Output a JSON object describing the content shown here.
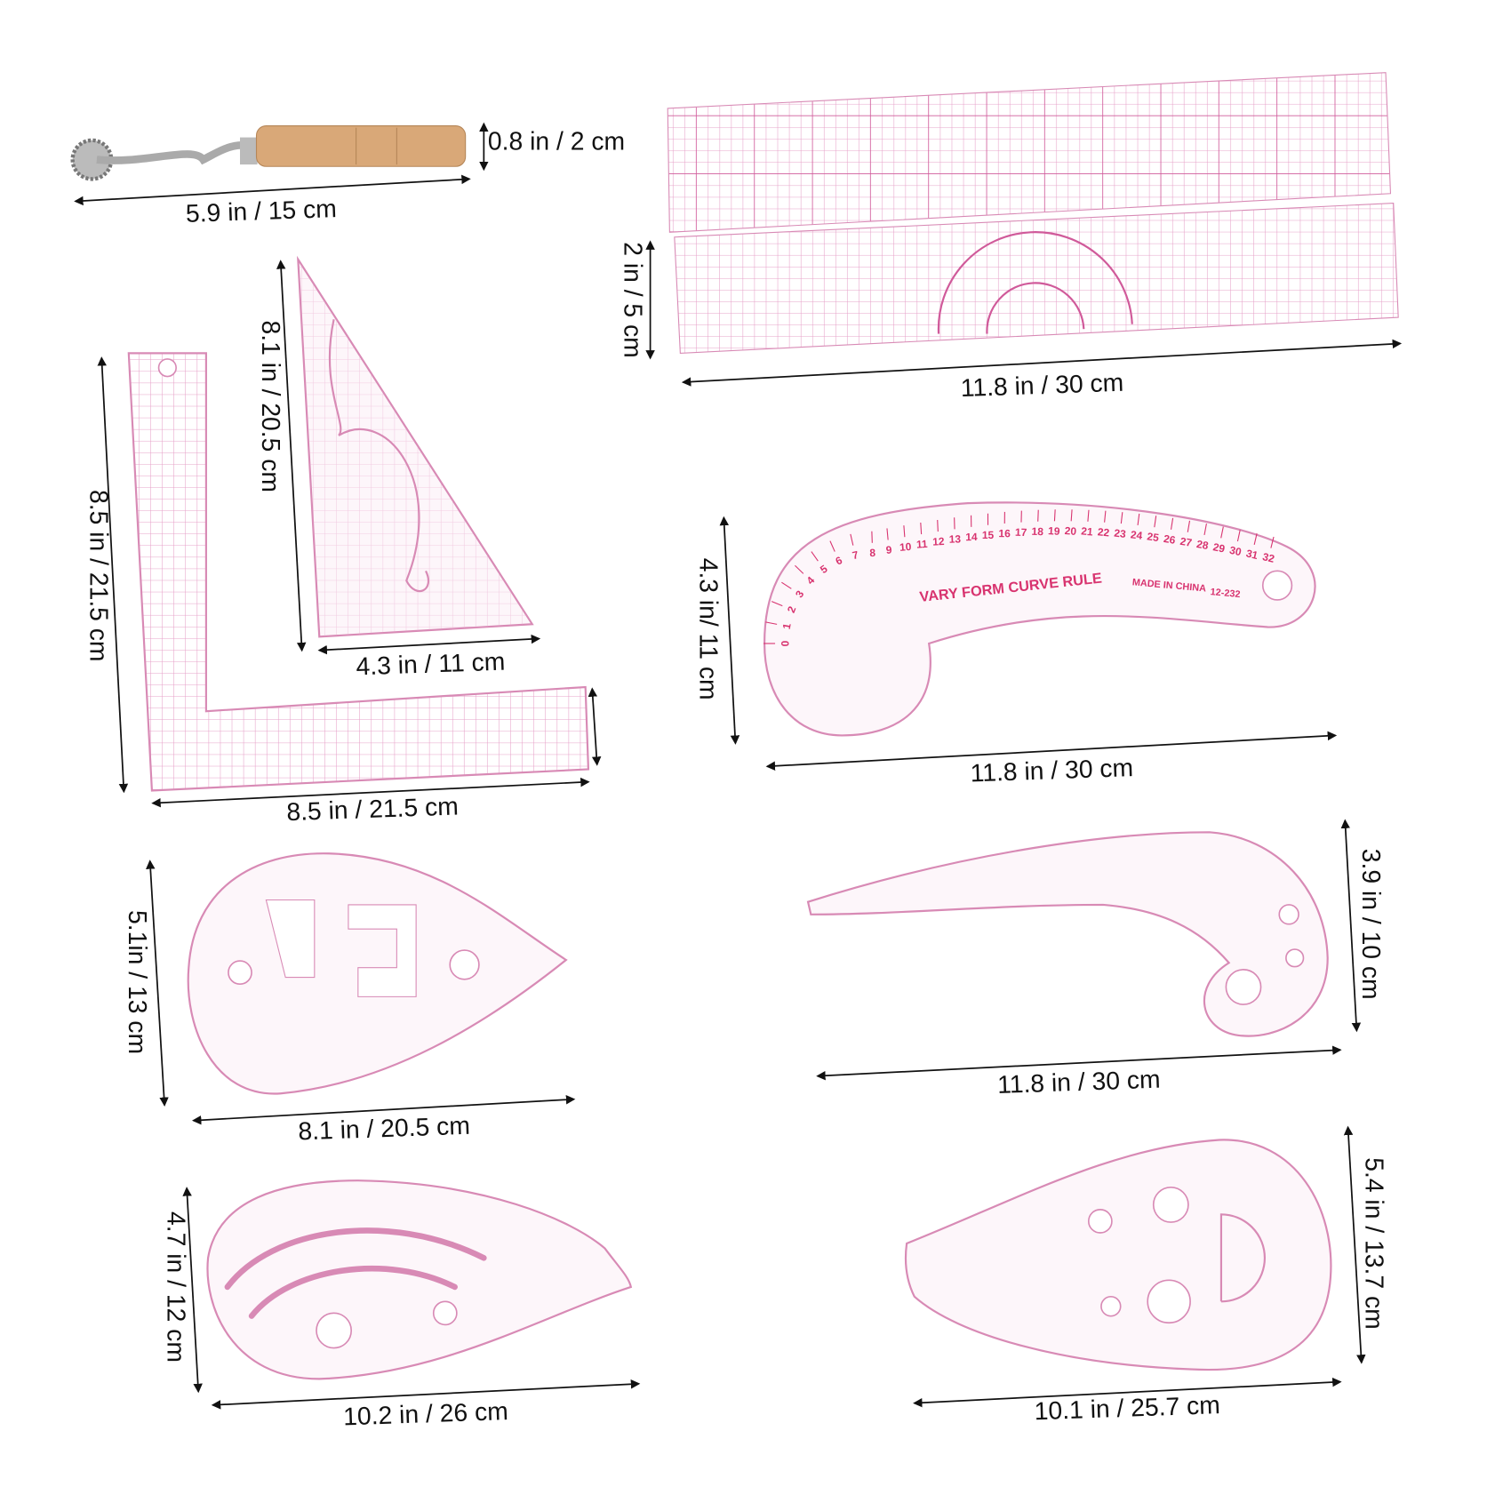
{
  "items": [
    {
      "height_label": "0.8 in / 2 cm",
      "width_label": "5.9 in / 15 cm"
    },
    {
      "height_label": "2 in / 5 cm",
      "width_label": "11.8 in / 30 cm"
    },
    {
      "height_label": "8.1 in / 20.5 cm",
      "width_label": "4.3 in / 11 cm"
    },
    {
      "height_label": "8.5 in / 21.5 cm",
      "width_label": "8.5 in / 21.5 cm"
    },
    {
      "height_label": "4.3 in/ 11 cm",
      "width_label": "11.8 in / 30 cm",
      "ruler_title": "VARY FORM CURVE RULE",
      "ruler_origin": "MADE IN CHINA",
      "ruler_model": "12-232",
      "scale_numbers": [
        0,
        1,
        2,
        3,
        4,
        5,
        6,
        7,
        8,
        9,
        10,
        11,
        12,
        13,
        14,
        15,
        16,
        17,
        18,
        19,
        20,
        21,
        22,
        23,
        24,
        25,
        26,
        27,
        28,
        29,
        30,
        31,
        32
      ]
    },
    {
      "height_label": "5.1in / 13 cm",
      "width_label": "8.1 in / 20.5 cm"
    },
    {
      "height_label": "3.9 in / 10 cm",
      "width_label": "11.8 in / 30 cm"
    },
    {
      "height_label": "4.7 in / 12 cm",
      "width_label": "10.2 in / 26 cm"
    },
    {
      "height_label": "5.4 in / 13.7 cm",
      "width_label": "10.1 in / 25.7 cm"
    }
  ]
}
